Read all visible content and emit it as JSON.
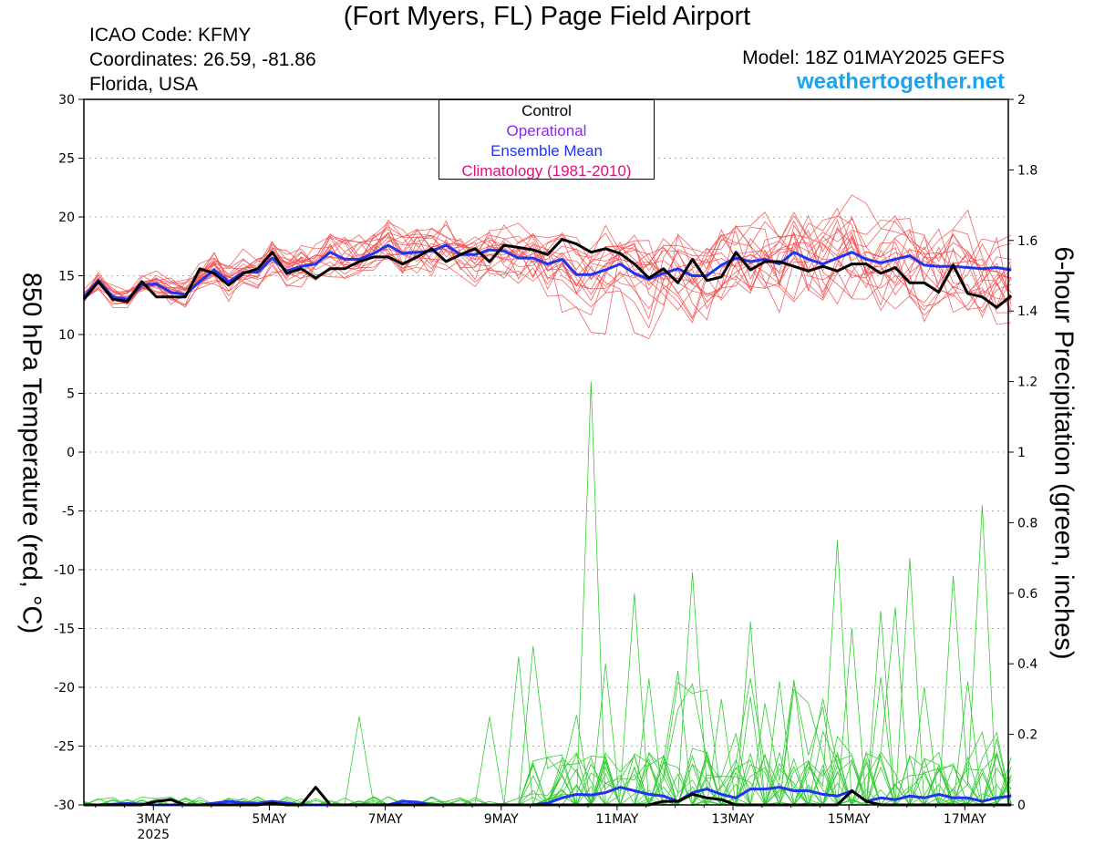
{
  "header": {
    "title": "(Fort Myers, FL) Page Field Airport",
    "icao": "ICAO Code: KFMY",
    "coords": "Coordinates: 26.59, -81.86",
    "region": "Florida, USA",
    "model": "Model: 18Z 01MAY2025 GEFS",
    "site": "weathertogether.net"
  },
  "chart_data": {
    "type": "line",
    "ylabel": "850 hPa Temperature (red, °C)",
    "y2label": "6-hour Precipitation (green, inches)",
    "ylim": [
      -30,
      30
    ],
    "y2lim": [
      0,
      2
    ],
    "yticks": [
      "30",
      "25",
      "20",
      "15",
      "10",
      "5",
      "0",
      "-5",
      "-10",
      "-15",
      "-20",
      "-25",
      "-30"
    ],
    "y2ticks": [
      "2",
      "1.8",
      "1.6",
      "1.4",
      "1.2",
      "1",
      "0.8",
      "0.6",
      "0.4",
      "0.2",
      "0"
    ],
    "xlim_days": [
      1.8,
      17.75
    ],
    "xtick_labels": [
      "3MAY",
      "5MAY",
      "7MAY",
      "9MAY",
      "11MAY",
      "13MAY",
      "15MAY",
      "17MAY"
    ],
    "xtick_days": [
      3,
      5,
      7,
      9,
      11,
      13,
      15,
      17
    ],
    "year_label": "2025",
    "grid": true,
    "legend_position": "top-center",
    "legend": [
      {
        "label": "Control",
        "color": "#000000"
      },
      {
        "label": "Operational",
        "color": "#8a2be2"
      },
      {
        "label": "Ensemble Mean",
        "color": "#2233ee"
      },
      {
        "label": "Climatology (1981-2010)",
        "color": "#e0107c"
      }
    ],
    "colors": {
      "members": "#f04a4a",
      "precip": "#33cc33",
      "control": "#000000",
      "mean": "#2233ee"
    },
    "series": [
      {
        "name": "Control",
        "variable": "850 hPa Temperature",
        "values": [
          13.0,
          14.5,
          13.0,
          12.8,
          14.5,
          13.2,
          13.2,
          13.2,
          15.6,
          15.2,
          14.2,
          15.2,
          15.6,
          17.0,
          15.2,
          15.6,
          14.8,
          15.6,
          15.6,
          16.2,
          16.6,
          16.6,
          16.0,
          16.6,
          17.3,
          16.2,
          16.8,
          17.3,
          16.2,
          17.6,
          17.4,
          17.2,
          16.8,
          18.1,
          17.7,
          17.0,
          17.3,
          16.9,
          16.0,
          14.8,
          15.6,
          14.4,
          16.4,
          14.6,
          14.9,
          17.0,
          15.5,
          16.2,
          16.2,
          15.8,
          15.4,
          15.8,
          15.4,
          16.0,
          16.0,
          15.2,
          15.7,
          14.4,
          14.4,
          13.6,
          15.9,
          13.5,
          13.2,
          12.3,
          13.3
        ]
      },
      {
        "name": "Ensemble Mean",
        "variable": "850 hPa Temperature",
        "values": [
          13.2,
          14.6,
          13.2,
          13.0,
          14.2,
          14.3,
          13.6,
          13.4,
          14.5,
          15.5,
          14.5,
          15.3,
          15.3,
          16.5,
          15.4,
          15.8,
          16.0,
          17.0,
          16.4,
          16.4,
          16.9,
          17.6,
          16.9,
          17.0,
          17.1,
          17.6,
          16.8,
          16.8,
          17.2,
          17.1,
          16.5,
          16.5,
          16.0,
          16.4,
          15.1,
          15.1,
          15.5,
          16.0,
          15.2,
          14.7,
          15.2,
          15.6,
          15.0,
          15.0,
          15.9,
          16.5,
          16.2,
          16.4,
          16.0,
          17.0,
          16.4,
          16.0,
          16.5,
          17.0,
          16.4,
          16.1,
          16.4,
          16.7,
          15.9,
          15.8,
          15.8,
          15.7,
          15.6,
          15.7,
          15.5
        ]
      },
      {
        "name": "Control",
        "variable": "6-hour Precipitation",
        "values": [
          0.0,
          0.0,
          0.0,
          0.0,
          0.0,
          0.01,
          0.015,
          0.0,
          0.0,
          0.0,
          0.0,
          0.0,
          0.0,
          0.005,
          0.0,
          0.0,
          0.05,
          0.0,
          0.0,
          0.0,
          0.0,
          0.0,
          0.0,
          0.0,
          0.0,
          0.0,
          0.0,
          0.0,
          0.0,
          0.0,
          0.0,
          0.0,
          0.0,
          0.0,
          0.0,
          0.0,
          0.0,
          0.0,
          0.0,
          0.0,
          0.01,
          0.01,
          0.03,
          0.02,
          0.015,
          0.0,
          0.0,
          0.0,
          0.0,
          0.0,
          0.0,
          0.0,
          0.0,
          0.04,
          0.01,
          0.0,
          0.0,
          0.0,
          0.0,
          0.0,
          0.0,
          0.0,
          0.0,
          0.0,
          0.0
        ]
      },
      {
        "name": "Ensemble Mean",
        "variable": "6-hour Precipitation",
        "values": [
          0.0,
          0.0,
          0.002,
          0.004,
          0.002,
          0.0,
          0.0,
          0.0,
          0.0,
          0.005,
          0.01,
          0.006,
          0.005,
          0.01,
          0.005,
          0.0,
          0.0,
          0.0,
          0.0,
          0.0,
          0.0,
          0.0,
          0.01,
          0.008,
          0.0,
          0.0,
          0.0,
          0.0,
          0.0,
          0.0,
          0.0,
          0.0,
          0.005,
          0.02,
          0.03,
          0.028,
          0.035,
          0.05,
          0.04,
          0.03,
          0.025,
          0.01,
          0.035,
          0.045,
          0.03,
          0.02,
          0.045,
          0.045,
          0.05,
          0.04,
          0.04,
          0.03,
          0.025,
          0.04,
          0.01,
          0.02,
          0.015,
          0.025,
          0.02,
          0.03,
          0.02,
          0.02,
          0.01,
          0.02,
          0.025
        ]
      }
    ]
  }
}
